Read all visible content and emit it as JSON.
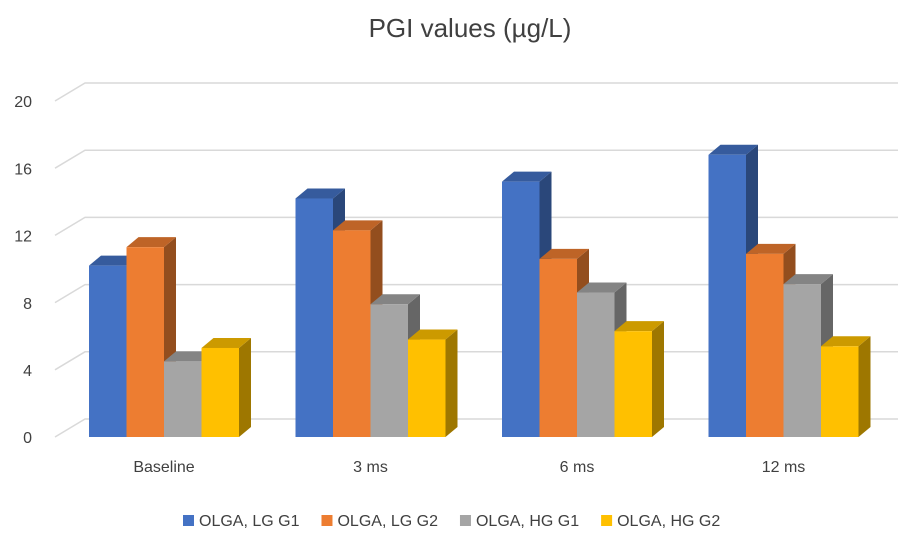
{
  "chart_data": {
    "type": "bar3d",
    "title": "PGI values (µg/L)",
    "categories": [
      "Baseline",
      "3 ms",
      "6 ms",
      "12 ms"
    ],
    "series": [
      {
        "name": "OLGA, LG G1",
        "color": "#4472c4",
        "values": [
          10.2,
          14.2,
          15.2,
          16.8
        ]
      },
      {
        "name": "OLGA, LG G2",
        "color": "#ed7d31",
        "values": [
          11.3,
          12.3,
          10.6,
          10.9
        ]
      },
      {
        "name": "OLGA, HG G1",
        "color": "#a5a5a5",
        "values": [
          4.5,
          7.9,
          8.6,
          9.1
        ]
      },
      {
        "name": "OLGA, HG G2",
        "color": "#ffc000",
        "values": [
          5.3,
          5.8,
          6.3,
          5.4
        ]
      }
    ],
    "ylim": [
      0,
      20
    ],
    "yticks": [
      0,
      4,
      8,
      12,
      16,
      20
    ],
    "grid": true,
    "legend": "bottom"
  }
}
